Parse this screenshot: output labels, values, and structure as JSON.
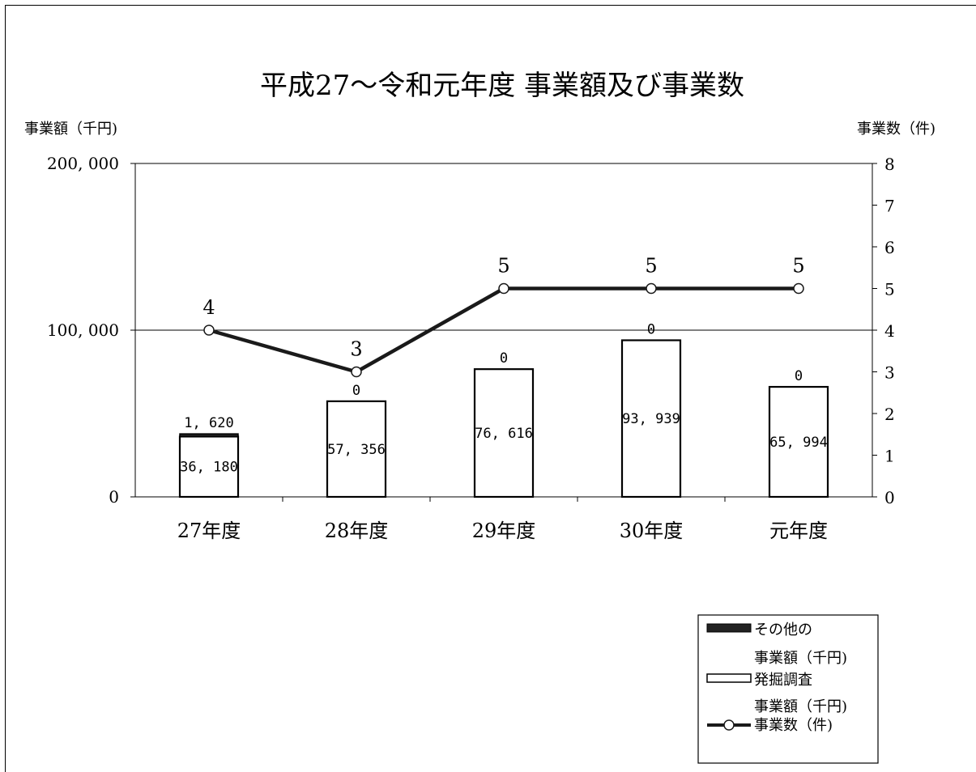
{
  "chart_data": {
    "type": "bar",
    "title": "平成27～令和元年度 事業額及び事業数",
    "y_left_label": "事業額（千円)",
    "y_right_label": "事業数（件)",
    "categories": [
      "27年度",
      "28年度",
      "29年度",
      "30年度",
      "元年度"
    ],
    "ylim_left": [
      0,
      200000
    ],
    "ylim_right": [
      0,
      8
    ],
    "left_ticks": [
      "0",
      "100, 000",
      "200, 000"
    ],
    "left_tick_values": [
      0,
      100000,
      200000
    ],
    "right_ticks": [
      "0",
      "1",
      "2",
      "3",
      "4",
      "5",
      "6",
      "7",
      "8"
    ],
    "series": [
      {
        "name": "発掘調査事業額（千円)",
        "kind": "bar-stack",
        "values": [
          36180,
          57356,
          76616,
          93939,
          65994
        ],
        "labels": [
          "36, 180",
          "57, 356",
          "76, 616",
          "93, 939",
          "65, 994"
        ]
      },
      {
        "name": "その他の事業額（千円)",
        "kind": "bar-stack",
        "values": [
          1620,
          0,
          0,
          0,
          0
        ],
        "labels": [
          "1, 620",
          "0",
          "0",
          "0",
          "0"
        ]
      },
      {
        "name": "事業数（件)",
        "kind": "line",
        "axis": "right",
        "values": [
          4,
          3,
          5,
          5,
          5
        ],
        "labels": [
          "4",
          "3",
          "5",
          "5",
          "5"
        ]
      }
    ],
    "legend": {
      "position": "bottom-right",
      "lines": [
        "その他の",
        "事業額（千円)",
        "発掘調査",
        "事業額（千円)",
        "事業数（件)"
      ]
    },
    "grid": "single-gridline-at-100000",
    "colors": {
      "other_bar": "#222222",
      "excavation_bar": "#ffffff",
      "line": "#1a1a1a"
    }
  }
}
